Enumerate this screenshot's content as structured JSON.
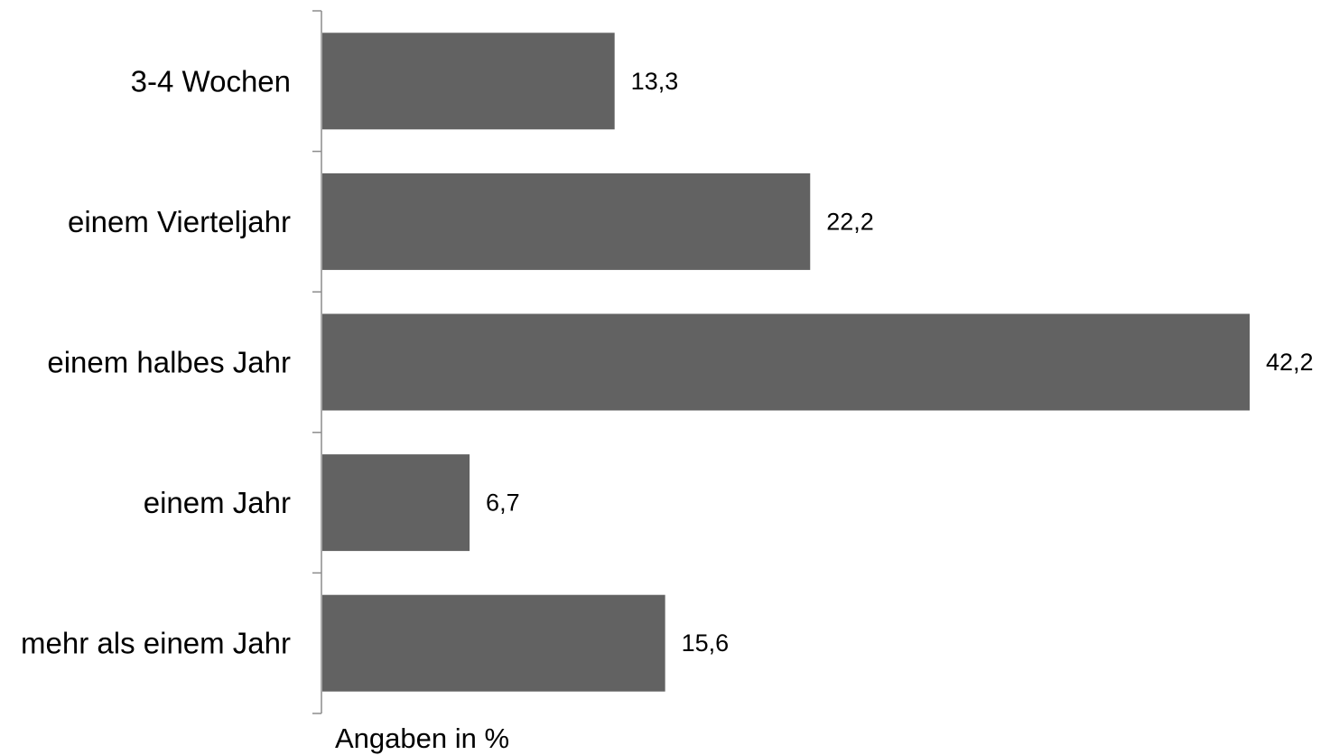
{
  "chart_data": {
    "type": "bar",
    "orientation": "horizontal",
    "categories": [
      "3-4 Wochen",
      "einem Vierteljahr",
      "einem halbes Jahr",
      "einem Jahr",
      "mehr als einem Jahr"
    ],
    "values": [
      13.3,
      22.2,
      42.2,
      6.7,
      15.6
    ],
    "value_labels": [
      "13,3",
      "22,2",
      "42,2",
      "6,7",
      "15,6"
    ],
    "xlabel": "Angaben in %",
    "bar_color": "#626262",
    "grid": false,
    "legend": "none"
  }
}
